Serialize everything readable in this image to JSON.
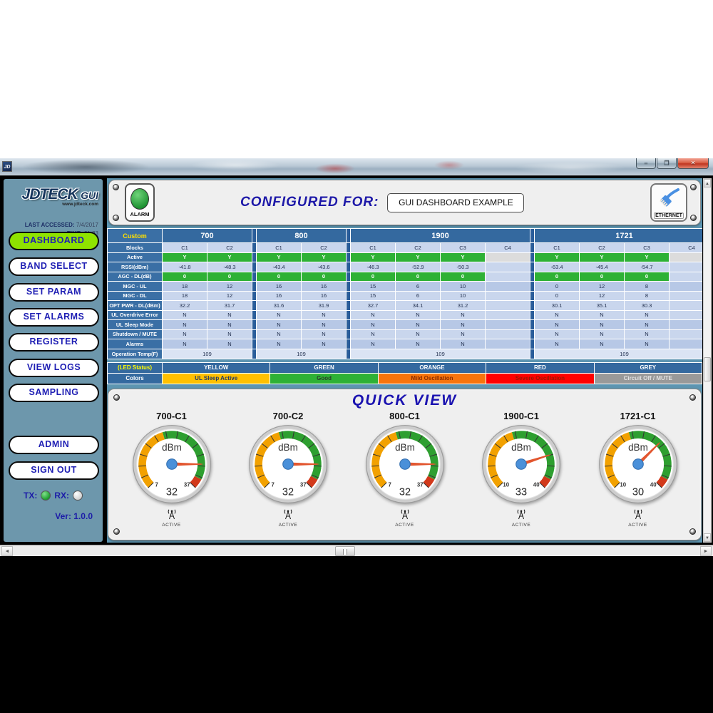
{
  "window": {
    "icon_text": "JD",
    "controls": {
      "minimize": "–",
      "maximize": "❐",
      "close": "✕"
    }
  },
  "sidebar": {
    "logo": {
      "brand": "JDTECK",
      "suffix": "GUI",
      "website": "www.jdteck.com"
    },
    "last_accessed_label": "LAST ACCESSED:",
    "last_accessed_value": "7/4/2017",
    "time_label": "TIME:",
    "time_value": "21:23",
    "nav": [
      "DASHBOARD",
      "BAND SELECT",
      "SET PARAM",
      "SET ALARMS",
      "REGISTER",
      "VIEW LOGS",
      "SAMPLING"
    ],
    "active_nav": "DASHBOARD",
    "account": [
      "ADMIN",
      "SIGN OUT"
    ],
    "tx_label": "TX:",
    "rx_label": "RX:",
    "tx_state": "green",
    "rx_state": "white",
    "version": "Ver: 1.0.0"
  },
  "header": {
    "alarm_label": "ALARM",
    "alarm_state": "green",
    "configured_for_label": "CONFIGURED FOR:",
    "configured_value": "GUI DASHBOARD EXAMPLE",
    "ethernet_label": "ETHERNET"
  },
  "table": {
    "corner": "Custom",
    "row_labels": [
      "Blocks",
      "Active",
      "RSSI(dBm)",
      "AGC - DL(dB)",
      "MGC - UL",
      "MGC - DL",
      "OPT PWR - DL(dBm)",
      "UL Overdrive Error",
      "UL Sleep Mode",
      "Shutdown / MUTE",
      "Alarms",
      "Operation Temp(F)"
    ],
    "bands": [
      {
        "name": "700",
        "cols": 2,
        "temp": "109",
        "rows": [
          [
            "C1",
            "C2"
          ],
          [
            "Y",
            "Y"
          ],
          [
            "-41.8",
            "-48.3"
          ],
          [
            "0",
            "0"
          ],
          [
            "18",
            "12"
          ],
          [
            "18",
            "12"
          ],
          [
            "32.2",
            "31.7"
          ],
          [
            "N",
            "N"
          ],
          [
            "N",
            "N"
          ],
          [
            "N",
            "N"
          ],
          [
            "N",
            "N"
          ]
        ]
      },
      {
        "name": "800",
        "cols": 2,
        "temp": "109",
        "rows": [
          [
            "C1",
            "C2"
          ],
          [
            "Y",
            "Y"
          ],
          [
            "-43.4",
            "-43.6"
          ],
          [
            "0",
            "0"
          ],
          [
            "16",
            "16"
          ],
          [
            "16",
            "16"
          ],
          [
            "31.6",
            "31.9"
          ],
          [
            "N",
            "N"
          ],
          [
            "N",
            "N"
          ],
          [
            "N",
            "N"
          ],
          [
            "N",
            "N"
          ]
        ]
      },
      {
        "name": "1900",
        "cols": 4,
        "temp": "109",
        "rows": [
          [
            "C1",
            "C2",
            "C3",
            "C4"
          ],
          [
            "Y",
            "Y",
            "Y",
            ""
          ],
          [
            "-46.3",
            "-52.9",
            "-50.3",
            ""
          ],
          [
            "0",
            "0",
            "0",
            ""
          ],
          [
            "15",
            "6",
            "10",
            ""
          ],
          [
            "15",
            "6",
            "10",
            ""
          ],
          [
            "32.7",
            "34.1",
            "31.2",
            ""
          ],
          [
            "N",
            "N",
            "N",
            ""
          ],
          [
            "N",
            "N",
            "N",
            ""
          ],
          [
            "N",
            "N",
            "N",
            ""
          ],
          [
            "N",
            "N",
            "N",
            ""
          ]
        ]
      },
      {
        "name": "1721",
        "cols": 4,
        "temp": "109",
        "rows": [
          [
            "C1",
            "C2",
            "C3",
            "C4"
          ],
          [
            "Y",
            "Y",
            "Y",
            ""
          ],
          [
            "-63.4",
            "-45.4",
            "-54.7",
            ""
          ],
          [
            "0",
            "0",
            "0",
            ""
          ],
          [
            "0",
            "12",
            "8",
            ""
          ],
          [
            "0",
            "12",
            "8",
            ""
          ],
          [
            "30.1",
            "35.1",
            "30.3",
            ""
          ],
          [
            "N",
            "N",
            "N",
            ""
          ],
          [
            "N",
            "N",
            "N",
            ""
          ],
          [
            "N",
            "N",
            "N",
            ""
          ],
          [
            "N",
            "N",
            "N",
            ""
          ]
        ]
      }
    ]
  },
  "legend": {
    "header_label": "(LED Status)",
    "columns": [
      "YELLOW",
      "GREEN",
      "ORANGE",
      "RED",
      "GREY"
    ],
    "row_label": "Colors",
    "cells": [
      {
        "label": "UL Sleep Active",
        "bg": "#FFC000",
        "fg": "#1f3864"
      },
      {
        "label": "Good",
        "bg": "#2EB135",
        "fg": "#2b3a2b"
      },
      {
        "label": "Mild Oscillation",
        "bg": "#F7740C",
        "fg": "#8a2c00"
      },
      {
        "label": "Severe Oscillation",
        "bg": "#FF0000",
        "fg": "#9c1500"
      },
      {
        "label": "Circuit Off / MUTE",
        "bg": "#999999",
        "fg": "#e2e2e2"
      }
    ]
  },
  "quick_view": {
    "title": "QUICK VIEW",
    "unit": "dBm",
    "status_label": "ACTIVE",
    "gauges": [
      {
        "label": "700-C1",
        "min": 7,
        "max": 37,
        "value": 32
      },
      {
        "label": "700-C2",
        "min": 7,
        "max": 37,
        "value": 32
      },
      {
        "label": "800-C1",
        "min": 7,
        "max": 37,
        "value": 32
      },
      {
        "label": "1900-C1",
        "min": 10,
        "max": 40,
        "value": 33
      },
      {
        "label": "1721-C1",
        "min": 10,
        "max": 40,
        "value": 30
      }
    ]
  },
  "colors": {
    "sidebar_bg": "#6d97ac",
    "main_bg": "#5d95b1",
    "band_header": "#34699f",
    "row_label_bg": "#3a6fa5",
    "row_light": "#c9d6ed",
    "row_mid": "#b7c8e6",
    "row_temp": "#dbe4f4",
    "band_divider": "#2a5d9a",
    "green_cell": "#2eb135",
    "blank_cell": "#dcdcdc",
    "accent_navy": "#1d18a8",
    "active_nav": "#8fe300",
    "gauge_orange": "#F2A100",
    "gauge_green": "#2E9F30",
    "gauge_red": "#D2391B",
    "needle": "#E2562F",
    "hub": "#4A90D9"
  }
}
